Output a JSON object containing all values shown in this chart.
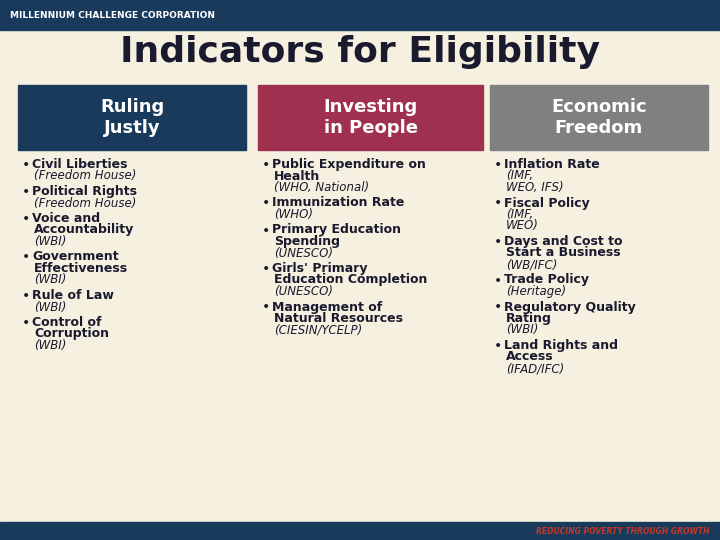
{
  "title": "Indicators for Eligibility",
  "title_fontsize": 26,
  "bg_color": "#f5f0e0",
  "header_bg_dark": "#1a3a5c",
  "header_bg_red": "#a03050",
  "header_bg_gray": "#808080",
  "header_text_color": "#ffffff",
  "top_bar_color": "#1a3a5c",
  "bottom_bar_color": "#1a3a5c",
  "bottom_right_text": "REDUCING POVERTY THROUGH GROWTH",
  "bottom_right_color": "#c0392b",
  "mcc_text": "MILLENNIUM CHALLENGE CORPORATION",
  "mcc_text_color": "#ffffff",
  "columns": [
    {
      "header": "Ruling\nJustly",
      "header_bg": "#1a3a5c",
      "items": [
        {
          "bold": "Civil Liberties",
          "italic": "(Freedom House)"
        },
        {
          "bold": "Political Rights",
          "italic": "(Freedom House)"
        },
        {
          "bold": "Voice and\nAccountability",
          "italic": "(WBI)"
        },
        {
          "bold": "Government\nEffectiveness",
          "italic": "(WBI)"
        },
        {
          "bold": "Rule of Law",
          "italic": "(WBI)"
        },
        {
          "bold": "Control of\nCorruption",
          "italic": "(WBI)"
        }
      ]
    },
    {
      "header": "Investing\nin People",
      "header_bg": "#a03050",
      "items": [
        {
          "bold": "Public Expenditure on\nHealth",
          "italic": "(WHO, National)"
        },
        {
          "bold": "Immunization Rate",
          "italic": "(WHO)"
        },
        {
          "bold": "Primary Education\nSpending",
          "italic": "(UNESCO)"
        },
        {
          "bold": "Girls' Primary\nEducation Completion",
          "italic": "(UNESCO)"
        },
        {
          "bold": "Management of\nNatural Resources",
          "italic": "(CIESIN/YCELP)"
        }
      ]
    },
    {
      "header": "Economic\nFreedom",
      "header_bg": "#808080",
      "items": [
        {
          "bold": "Inflation Rate",
          "italic": "(IMF,\nWEO, IFS)"
        },
        {
          "bold": "Fiscal Policy",
          "italic": "(IMF,\nWEO)"
        },
        {
          "bold": "Days and Cost to\nStart a Business",
          "italic": "(WB/IFC)"
        },
        {
          "bold": "Trade Policy",
          "italic": "(Heritage)"
        },
        {
          "bold": "Regulatory Quality\nRating",
          "italic": "(WBI)"
        },
        {
          "bold": "Land Rights and\nAccess",
          "italic": "(IFAD/IFC)"
        }
      ]
    }
  ]
}
